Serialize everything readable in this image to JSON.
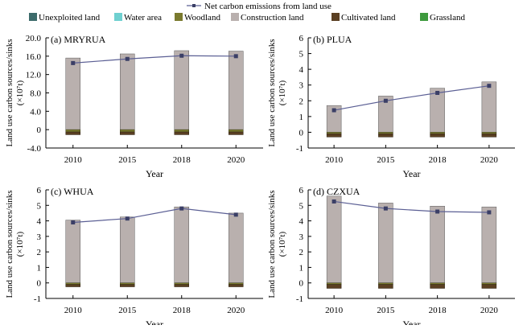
{
  "legend_top": {
    "line_label": "Net carbon emissions from land use",
    "items": [
      {
        "label": "Unexploited land",
        "color": "#3d6b6b"
      },
      {
        "label": "Water area",
        "color": "#6fd0d0"
      },
      {
        "label": "Woodland",
        "color": "#7a7a2e"
      },
      {
        "label": "Construction land",
        "color": "#b9b0ae"
      },
      {
        "label": "Cultivated land",
        "color": "#5a3f22"
      },
      {
        "label": "Grassland",
        "color": "#3e9a3e"
      }
    ]
  },
  "colors": {
    "construction": "#b9b0ae",
    "cultivated": "#5a3f22",
    "woodland": "#7a7a2e",
    "line": "#5b5f94",
    "marker": "#3b3f66"
  },
  "chart_data": [
    {
      "type": "bar",
      "title": "(a) MRYRUA",
      "xlabel": "Year",
      "ylabel": "Land use carbon sources/sinks",
      "yunit": "(×10⁷t)",
      "ylim": [
        -4,
        20
      ],
      "yticks": [
        "-4.0",
        "0",
        "4.0",
        "8.0",
        "12.0",
        "16.0",
        "20.0"
      ],
      "categories": [
        "2010",
        "2015",
        "2018",
        "2020"
      ],
      "series": [
        {
          "key": "construction",
          "values": [
            15.6,
            16.5,
            17.2,
            17.1
          ]
        },
        {
          "key": "woodland",
          "values": [
            -0.5,
            -0.5,
            -0.5,
            -0.5
          ]
        },
        {
          "key": "cultivated",
          "values": [
            -0.6,
            -0.6,
            -0.6,
            -0.6
          ]
        },
        {
          "key": "net",
          "values": [
            14.5,
            15.4,
            16.1,
            16.0
          ]
        }
      ]
    },
    {
      "type": "bar",
      "title": "(b) PLUA",
      "xlabel": "Year",
      "ylabel": "Land use carbon sources/sinks",
      "yunit": "(×10⁷t)",
      "ylim": [
        -1,
        6
      ],
      "yticks": [
        "-1",
        "0",
        "1",
        "2",
        "3",
        "4",
        "5",
        "6"
      ],
      "categories": [
        "2010",
        "2015",
        "2018",
        "2020"
      ],
      "series": [
        {
          "key": "construction",
          "values": [
            1.7,
            2.3,
            2.8,
            3.2
          ]
        },
        {
          "key": "woodland",
          "values": [
            -0.1,
            -0.1,
            -0.1,
            -0.1
          ]
        },
        {
          "key": "cultivated",
          "values": [
            -0.2,
            -0.2,
            -0.2,
            -0.2
          ]
        },
        {
          "key": "net",
          "values": [
            1.4,
            2.0,
            2.5,
            2.95
          ]
        }
      ]
    },
    {
      "type": "bar",
      "title": "(c) WHUA",
      "xlabel": "Year",
      "ylabel": "Land use carbon sources/sinks",
      "yunit": "(×10⁷t)",
      "ylim": [
        -1,
        6
      ],
      "yticks": [
        "-1",
        "0",
        "1",
        "2",
        "3",
        "4",
        "5",
        "6"
      ],
      "categories": [
        "2010",
        "2015",
        "2018",
        "2020"
      ],
      "series": [
        {
          "key": "construction",
          "values": [
            4.05,
            4.25,
            4.9,
            4.5
          ]
        },
        {
          "key": "woodland",
          "values": [
            -0.1,
            -0.1,
            -0.1,
            -0.1
          ]
        },
        {
          "key": "cultivated",
          "values": [
            -0.15,
            -0.15,
            -0.15,
            -0.15
          ]
        },
        {
          "key": "net",
          "values": [
            3.9,
            4.15,
            4.8,
            4.4
          ]
        }
      ]
    },
    {
      "type": "bar",
      "title": "(d) CZXUA",
      "xlabel": "Year",
      "ylabel": "Land use carbon sources/sinks",
      "yunit": "(×10⁷t)",
      "ylim": [
        -1,
        6
      ],
      "yticks": [
        "-1",
        "0",
        "1",
        "2",
        "3",
        "4",
        "5",
        "6"
      ],
      "categories": [
        "2010",
        "2015",
        "2018",
        "2020"
      ],
      "series": [
        {
          "key": "construction",
          "values": [
            5.6,
            5.15,
            4.95,
            4.9
          ]
        },
        {
          "key": "woodland",
          "values": [
            -0.1,
            -0.1,
            -0.1,
            -0.1
          ]
        },
        {
          "key": "cultivated",
          "values": [
            -0.25,
            -0.25,
            -0.25,
            -0.25
          ]
        },
        {
          "key": "net",
          "values": [
            5.25,
            4.8,
            4.6,
            4.55
          ]
        }
      ]
    }
  ]
}
